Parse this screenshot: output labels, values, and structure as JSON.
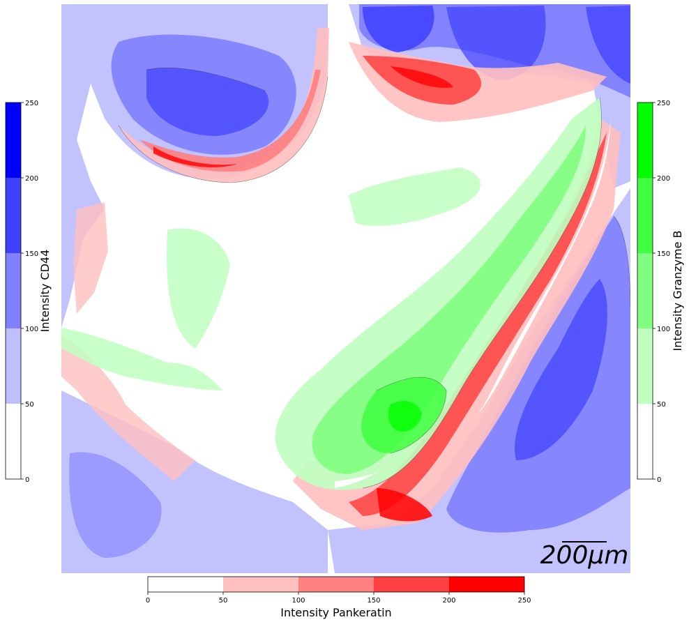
{
  "chart_data": {
    "type": "heatmap",
    "description_channels": [
      {
        "name": "CD44",
        "color": "#0000ff",
        "label": "Intensity CD44",
        "ticks": [
          0,
          50,
          100,
          150,
          200,
          250
        ],
        "range": [
          0,
          250
        ],
        "colorbar": "left"
      },
      {
        "name": "Granzyme B",
        "color": "#00ff00",
        "label": "Intensity Granzyme B",
        "ticks": [
          0,
          50,
          100,
          150,
          200,
          250
        ],
        "range": [
          0,
          250
        ],
        "colorbar": "right"
      },
      {
        "name": "Pankeratin",
        "color": "#ff0000",
        "label": "Intensity Pankeratin",
        "ticks": [
          0,
          50,
          100,
          150,
          200,
          250
        ],
        "range": [
          0,
          250
        ],
        "colorbar": "bottom"
      }
    ],
    "levels": [
      0,
      50,
      100,
      150,
      200,
      250
    ],
    "level_colors": {
      "blue": [
        "#ffffff",
        "#bfbfff",
        "#8080ff",
        "#4040ff",
        "#0000ff"
      ],
      "green": [
        "#ffffff",
        "#bfffbf",
        "#80ff80",
        "#40ff40",
        "#00ff00"
      ],
      "red": [
        "#ffffff",
        "#ffbfbf",
        "#ff8080",
        "#ff4040",
        "#ff0000"
      ]
    },
    "scalebar": {
      "text": "200μm"
    }
  }
}
